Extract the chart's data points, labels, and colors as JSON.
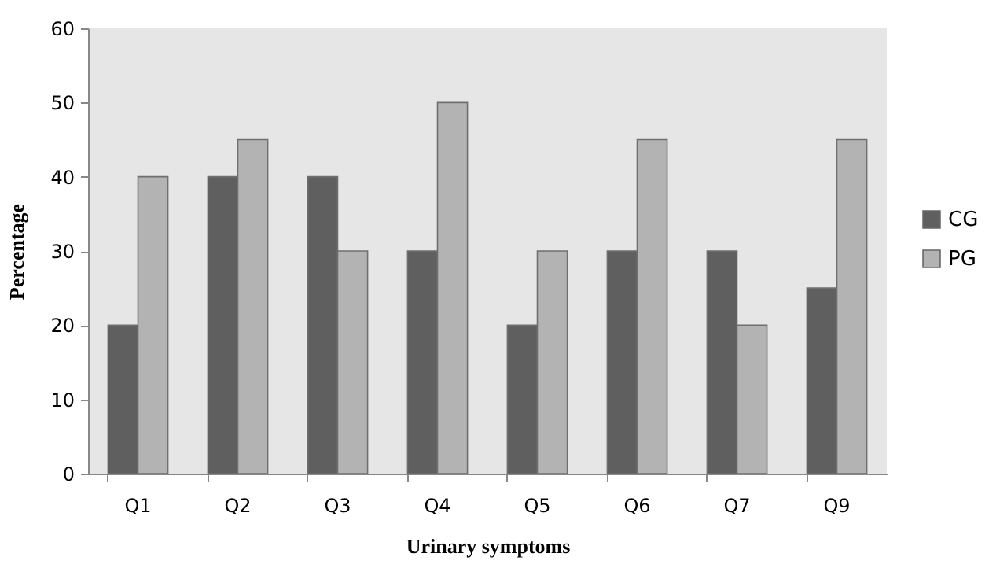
{
  "chart_data": {
    "type": "bar",
    "xlabel": "Urinary symptoms",
    "ylabel": "Percentage",
    "categories": [
      "Q1",
      "Q2",
      "Q3",
      "Q4",
      "Q5",
      "Q6",
      "Q7",
      "Q9"
    ],
    "series": [
      {
        "name": "CG",
        "color": "#5f5f5f",
        "values": [
          20,
          40,
          40,
          30,
          20,
          30,
          30,
          25
        ]
      },
      {
        "name": "PG",
        "color": "#b3b3b3",
        "values": [
          40,
          45,
          30,
          50,
          30,
          45,
          20,
          45
        ]
      }
    ],
    "ylim": [
      0,
      60
    ],
    "yticks": [
      0,
      10,
      20,
      30,
      40,
      50,
      60
    ],
    "grid": false,
    "legend": "right"
  }
}
